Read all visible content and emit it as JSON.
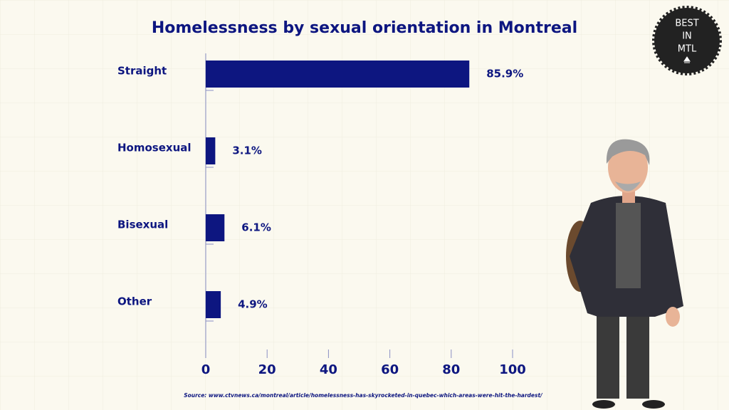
{
  "chart_data": {
    "type": "bar",
    "orientation": "horizontal",
    "title": "Homelessness by sexual orientation in Montreal",
    "categories": [
      "Straight",
      "Homosexual",
      "Bisexual",
      "Other"
    ],
    "values": [
      85.9,
      3.1,
      6.1,
      4.9
    ],
    "value_labels": [
      "85.9%",
      "3.1%",
      "6.1%",
      "4.9%"
    ],
    "color": "#0d1680",
    "xlim": [
      0,
      100
    ],
    "xticks": [
      0,
      20,
      40,
      60,
      80,
      100
    ],
    "source": "Source: www.ctvnews.ca/montreal/article/homelessness-has-skyrocketed-in-quebec-which-areas-were-hit-the-hardest/"
  },
  "badge": {
    "lines": [
      "BEST",
      "IN",
      "MTL"
    ]
  }
}
